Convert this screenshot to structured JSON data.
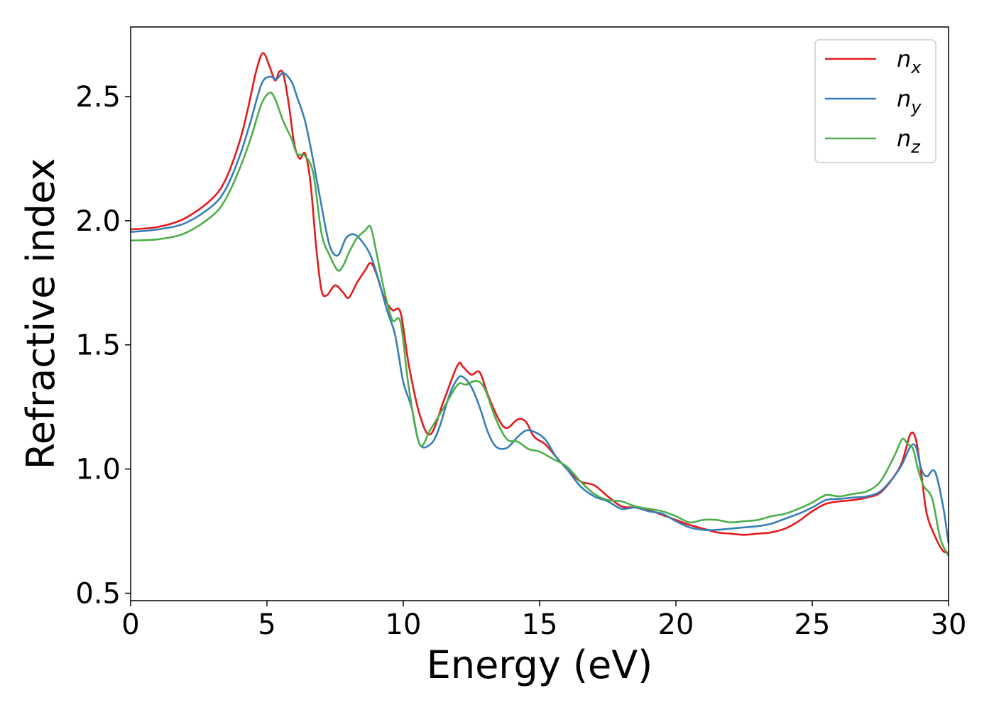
{
  "chart_data": {
    "type": "line",
    "title": "",
    "xlabel": "Energy (eV)",
    "ylabel": "Refractive index",
    "xlim": [
      0,
      30
    ],
    "ylim": [
      0.47,
      2.78
    ],
    "xticks": [
      0,
      5,
      10,
      15,
      20,
      25,
      30
    ],
    "yticks": [
      0.5,
      1.0,
      1.5,
      2.0,
      2.5
    ],
    "xtick_labels": [
      "0",
      "5",
      "10",
      "15",
      "20",
      "25",
      "30"
    ],
    "ytick_labels": [
      "0.5",
      "1.0",
      "1.5",
      "2.0",
      "2.5"
    ],
    "grid": false,
    "legend_position": "top-right",
    "series": [
      {
        "name": "n",
        "subscript": "x",
        "color": "#e41a1c",
        "x": [
          0,
          1,
          2,
          3,
          3.5,
          4,
          4.3,
          4.6,
          4.85,
          5.1,
          5.3,
          5.45,
          5.6,
          5.8,
          6.0,
          6.2,
          6.4,
          6.6,
          6.8,
          7.0,
          7.2,
          7.5,
          7.8,
          8.0,
          8.3,
          8.6,
          8.8,
          9.0,
          9.3,
          9.6,
          9.9,
          10.2,
          10.6,
          11.0,
          11.5,
          12.0,
          12.2,
          12.5,
          12.8,
          13.1,
          13.5,
          13.8,
          14.2,
          14.5,
          14.8,
          15.2,
          15.6,
          16.0,
          16.5,
          17.0,
          17.5,
          18.0,
          18.5,
          19.0,
          19.5,
          20.0,
          20.5,
          21.0,
          21.5,
          22.0,
          22.5,
          23.0,
          23.5,
          24.0,
          24.5,
          25.0,
          25.5,
          26.0,
          26.5,
          27.0,
          27.5,
          28.0,
          28.3,
          28.6,
          28.8,
          29.0,
          29.2,
          29.5,
          29.8,
          30.0
        ],
        "y": [
          1.965,
          1.975,
          2.01,
          2.09,
          2.17,
          2.32,
          2.45,
          2.6,
          2.675,
          2.62,
          2.565,
          2.6,
          2.59,
          2.47,
          2.31,
          2.25,
          2.27,
          2.15,
          1.9,
          1.72,
          1.7,
          1.74,
          1.71,
          1.69,
          1.75,
          1.8,
          1.83,
          1.79,
          1.69,
          1.64,
          1.63,
          1.42,
          1.22,
          1.14,
          1.28,
          1.42,
          1.41,
          1.38,
          1.39,
          1.3,
          1.2,
          1.165,
          1.2,
          1.19,
          1.13,
          1.1,
          1.05,
          1.0,
          0.95,
          0.935,
          0.89,
          0.85,
          0.845,
          0.835,
          0.815,
          0.795,
          0.775,
          0.76,
          0.745,
          0.74,
          0.735,
          0.74,
          0.745,
          0.76,
          0.79,
          0.83,
          0.86,
          0.87,
          0.875,
          0.885,
          0.905,
          0.97,
          1.03,
          1.14,
          1.12,
          0.98,
          0.82,
          0.73,
          0.67,
          0.665
        ]
      },
      {
        "name": "n",
        "subscript": "y",
        "color": "#377eb8",
        "x": [
          0,
          1,
          2,
          3,
          3.5,
          4,
          4.4,
          4.8,
          5.1,
          5.35,
          5.6,
          5.9,
          6.1,
          6.4,
          6.7,
          7.0,
          7.3,
          7.6,
          7.9,
          8.2,
          8.5,
          8.8,
          9.1,
          9.4,
          9.7,
          10.0,
          10.3,
          10.6,
          11.0,
          11.3,
          11.7,
          12.0,
          12.2,
          12.5,
          12.8,
          13.1,
          13.4,
          13.8,
          14.2,
          14.5,
          14.8,
          15.2,
          15.6,
          16.0,
          16.5,
          17.0,
          17.5,
          18.0,
          18.5,
          19.0,
          19.5,
          20.0,
          20.5,
          21.0,
          21.5,
          22.0,
          22.5,
          23.0,
          23.5,
          24.0,
          24.5,
          25.0,
          25.5,
          26.0,
          26.5,
          27.0,
          27.5,
          28.0,
          28.3,
          28.6,
          28.8,
          29.0,
          29.2,
          29.5,
          29.8,
          30.0
        ],
        "y": [
          1.955,
          1.965,
          1.99,
          2.06,
          2.13,
          2.26,
          2.4,
          2.55,
          2.58,
          2.57,
          2.595,
          2.56,
          2.5,
          2.4,
          2.24,
          2.06,
          1.9,
          1.86,
          1.93,
          1.945,
          1.915,
          1.86,
          1.76,
          1.64,
          1.54,
          1.35,
          1.25,
          1.1,
          1.1,
          1.16,
          1.3,
          1.365,
          1.37,
          1.33,
          1.25,
          1.15,
          1.09,
          1.085,
          1.13,
          1.155,
          1.15,
          1.12,
          1.05,
          1.0,
          0.93,
          0.89,
          0.87,
          0.84,
          0.845,
          0.83,
          0.82,
          0.79,
          0.765,
          0.755,
          0.755,
          0.76,
          0.765,
          0.77,
          0.78,
          0.8,
          0.82,
          0.845,
          0.875,
          0.88,
          0.885,
          0.89,
          0.91,
          0.97,
          1.02,
          1.09,
          1.09,
          1.0,
          0.97,
          0.99,
          0.85,
          0.7
        ]
      },
      {
        "name": "n",
        "subscript": "z",
        "color": "#4daf4a",
        "x": [
          0,
          1,
          2,
          3,
          3.5,
          4,
          4.4,
          4.8,
          5.1,
          5.3,
          5.6,
          5.9,
          6.1,
          6.4,
          6.7,
          7.0,
          7.3,
          7.6,
          7.8,
          8.0,
          8.3,
          8.6,
          8.8,
          9.0,
          9.3,
          9.6,
          9.9,
          10.2,
          10.6,
          11.0,
          11.5,
          12.0,
          12.3,
          12.7,
          13.0,
          13.4,
          13.8,
          14.2,
          14.6,
          15.0,
          15.5,
          16.0,
          16.5,
          17.0,
          17.5,
          18.0,
          18.5,
          19.0,
          19.5,
          20.0,
          20.5,
          21.0,
          21.5,
          22.0,
          22.5,
          23.0,
          23.5,
          24.0,
          24.5,
          25.0,
          25.5,
          26.0,
          26.5,
          27.0,
          27.5,
          28.0,
          28.3,
          28.5,
          28.7,
          28.9,
          29.1,
          29.4,
          29.7,
          30.0
        ],
        "y": [
          1.92,
          1.925,
          1.95,
          2.02,
          2.09,
          2.21,
          2.33,
          2.47,
          2.515,
          2.49,
          2.4,
          2.33,
          2.27,
          2.26,
          2.19,
          1.95,
          1.86,
          1.8,
          1.82,
          1.87,
          1.93,
          1.96,
          1.975,
          1.88,
          1.72,
          1.6,
          1.59,
          1.33,
          1.1,
          1.16,
          1.25,
          1.34,
          1.34,
          1.355,
          1.32,
          1.2,
          1.12,
          1.11,
          1.08,
          1.07,
          1.04,
          1.01,
          0.95,
          0.9,
          0.875,
          0.87,
          0.85,
          0.84,
          0.83,
          0.81,
          0.785,
          0.795,
          0.795,
          0.785,
          0.79,
          0.795,
          0.81,
          0.82,
          0.84,
          0.865,
          0.895,
          0.89,
          0.9,
          0.91,
          0.95,
          1.05,
          1.12,
          1.1,
          1.08,
          0.99,
          0.93,
          0.88,
          0.72,
          0.65
        ]
      }
    ]
  }
}
